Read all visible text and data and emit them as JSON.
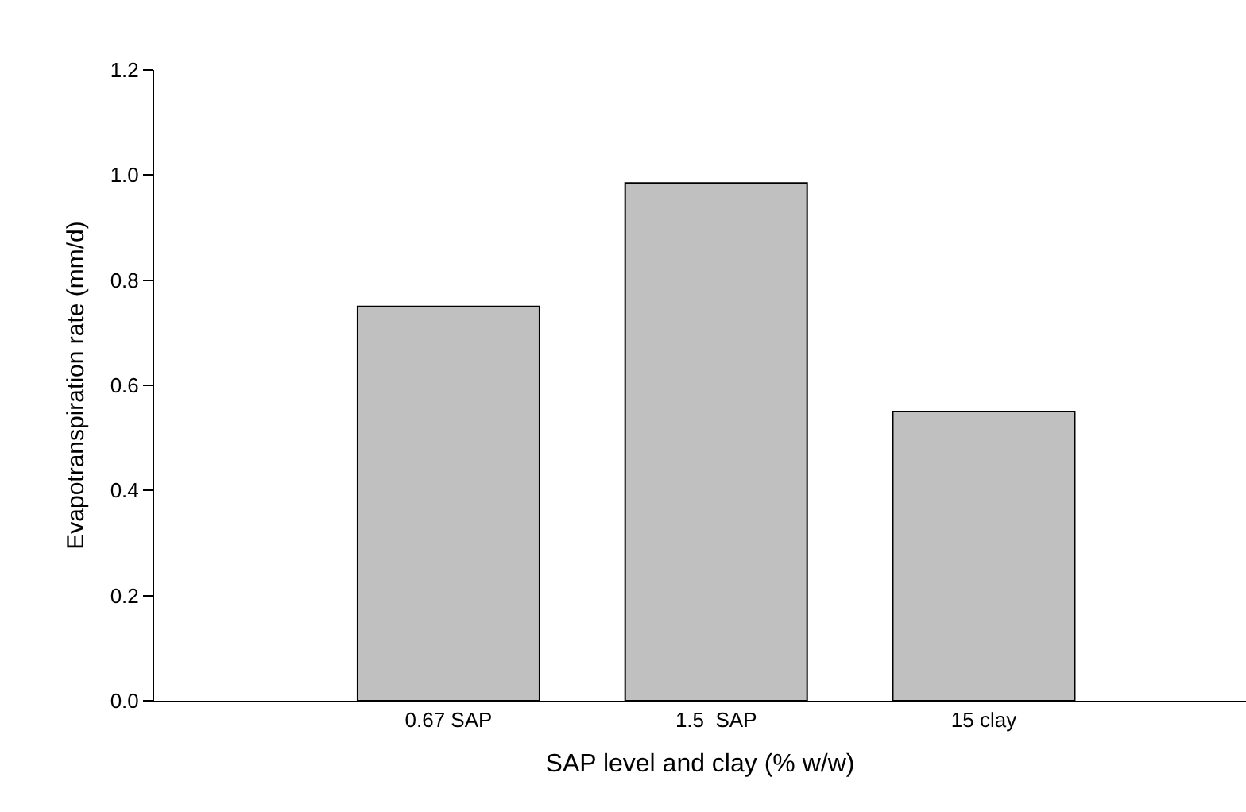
{
  "chart_data": {
    "type": "bar",
    "xlabel": "SAP level and clay (% w/w)",
    "ylabel": "Evapotranspiration rate (mm/d)",
    "categories": [
      "0.67 SAP",
      "1.5  SAP",
      "15 clay"
    ],
    "values": [
      0.75,
      0.985,
      0.55
    ],
    "color": "#c0c0c0",
    "ylim": [
      0,
      1.2
    ],
    "yticks": [
      {
        "value": 0,
        "label": "0.0"
      },
      0.2,
      0.4,
      0.6,
      0.8,
      {
        "value": 1,
        "label": "1.0"
      },
      1.2
    ],
    "grid": false
  }
}
